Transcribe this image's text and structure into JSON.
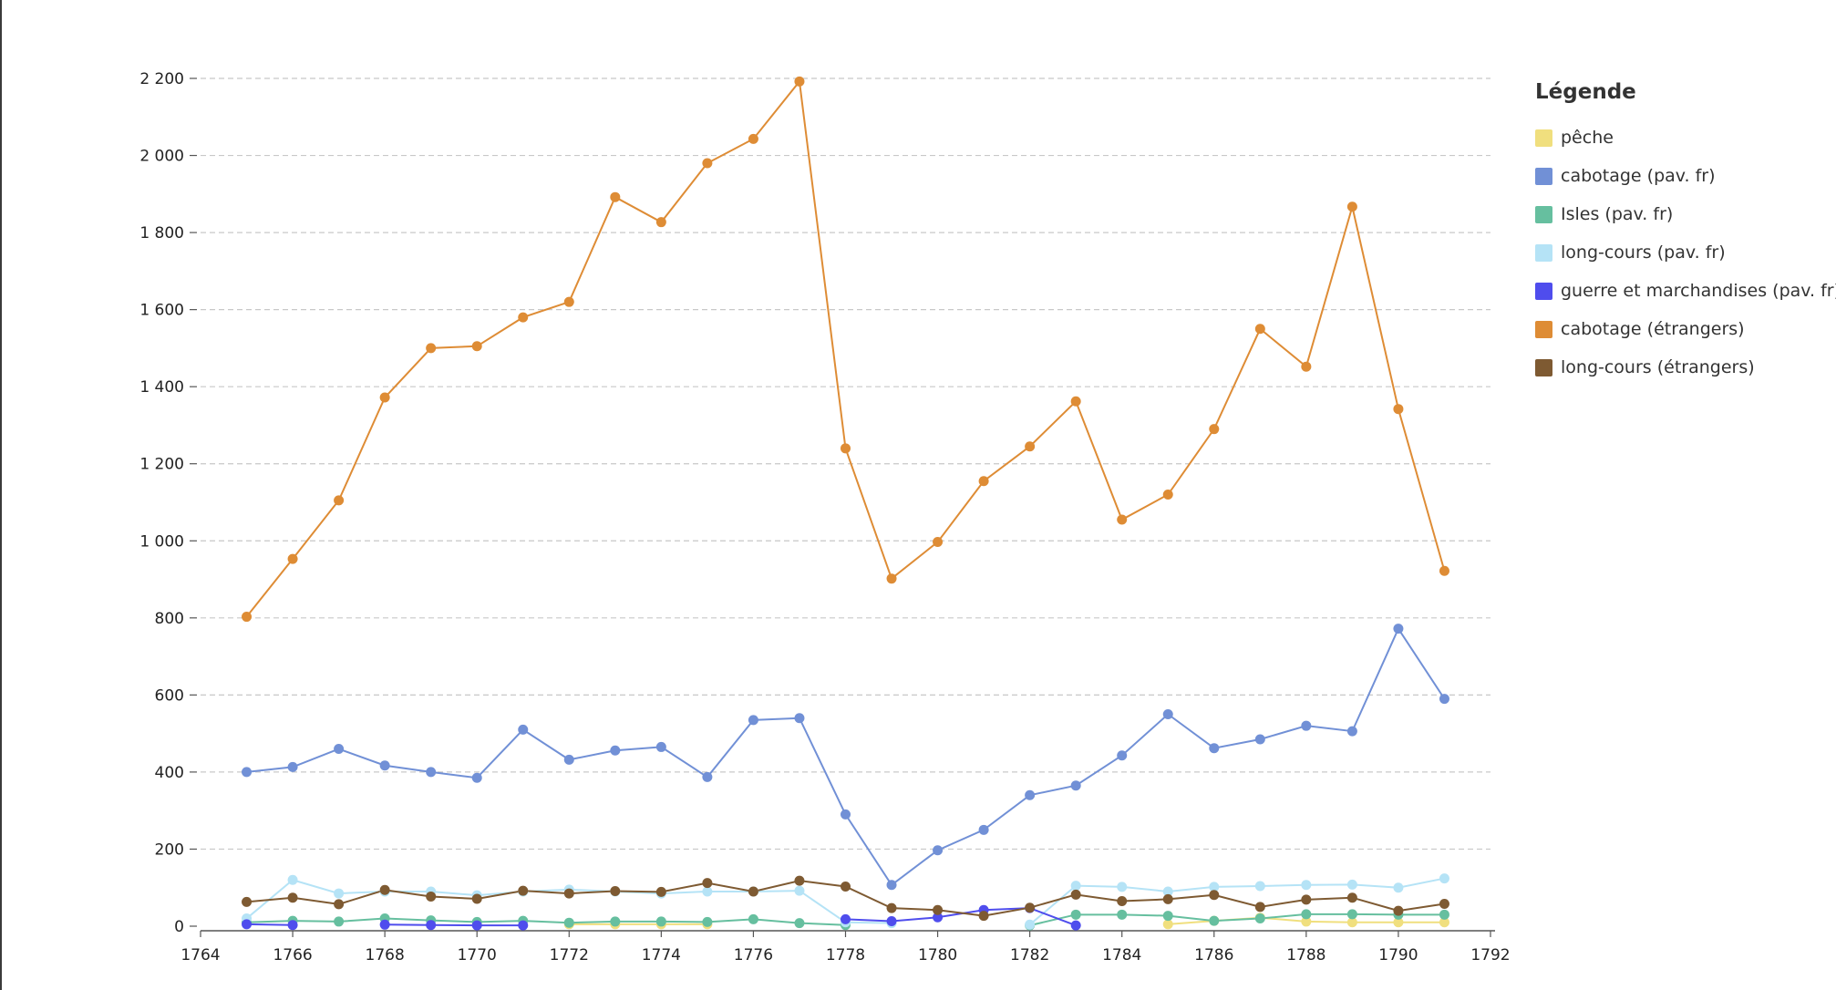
{
  "chart_data": {
    "type": "line",
    "title": "",
    "xlabel": "",
    "ylabel": "",
    "xlim": [
      1764,
      1792
    ],
    "ylim": [
      0,
      2200
    ],
    "x_ticks": [
      "1764",
      "1766",
      "1768",
      "1770",
      "1772",
      "1774",
      "1776",
      "1778",
      "1780",
      "1782",
      "1784",
      "1786",
      "1788",
      "1790",
      "1792"
    ],
    "y_ticks": [
      "0",
      "200",
      "400",
      "600",
      "800",
      "1 000",
      "1 200",
      "1 400",
      "1 600",
      "1 800",
      "2 000",
      "2 200"
    ],
    "grid": "horizontal dashed",
    "legend": {
      "title": "Légende",
      "placement": "right",
      "items": [
        {
          "label": "pêche",
          "color": "#f0df7e"
        },
        {
          "label": "cabotage (pav. fr)",
          "color": "#7190d6"
        },
        {
          "label": "Isles (pav. fr)",
          "color": "#66bf9f"
        },
        {
          "label": "long-cours (pav. fr)",
          "color": "#b5e3f6"
        },
        {
          "label": "guerre et marchandises (pav. fr)",
          "color": "#4f4ded"
        },
        {
          "label": "cabotage (étrangers)",
          "color": "#de8c35"
        },
        {
          "label": "long-cours (étrangers)",
          "color": "#7e5a32"
        }
      ]
    },
    "series": [
      {
        "name": "pêche",
        "color": "#f0df7e",
        "points": [
          [
            1772,
            5
          ],
          [
            1773,
            5
          ],
          [
            1774,
            5
          ],
          [
            1775,
            5
          ],
          [
            1785,
            5
          ],
          [
            1786,
            14
          ],
          [
            1787,
            22
          ],
          [
            1788,
            12
          ],
          [
            1789,
            10
          ],
          [
            1790,
            10
          ],
          [
            1791,
            10
          ]
        ]
      },
      {
        "name": "cabotage (pav. fr)",
        "color": "#7190d6",
        "points": [
          [
            1765,
            400
          ],
          [
            1766,
            413
          ],
          [
            1767,
            460
          ],
          [
            1768,
            417
          ],
          [
            1769,
            400
          ],
          [
            1770,
            385
          ],
          [
            1771,
            510
          ],
          [
            1772,
            432
          ],
          [
            1773,
            456
          ],
          [
            1774,
            465
          ],
          [
            1775,
            387
          ],
          [
            1776,
            535
          ],
          [
            1777,
            540
          ],
          [
            1778,
            290
          ],
          [
            1779,
            107
          ],
          [
            1780,
            197
          ],
          [
            1781,
            250
          ],
          [
            1782,
            340
          ],
          [
            1783,
            365
          ],
          [
            1784,
            443
          ],
          [
            1785,
            550
          ],
          [
            1786,
            462
          ],
          [
            1787,
            485
          ],
          [
            1788,
            520
          ],
          [
            1789,
            506
          ],
          [
            1790,
            772
          ],
          [
            1791,
            590
          ]
        ]
      },
      {
        "name": "Isles (pav. fr)",
        "color": "#66bf9f",
        "points": [
          [
            1765,
            10
          ],
          [
            1766,
            14
          ],
          [
            1767,
            12
          ],
          [
            1768,
            20
          ],
          [
            1769,
            15
          ],
          [
            1770,
            11
          ],
          [
            1771,
            14
          ],
          [
            1772,
            9
          ],
          [
            1773,
            12
          ],
          [
            1774,
            12
          ],
          [
            1775,
            11
          ],
          [
            1776,
            18
          ],
          [
            1777,
            8
          ],
          [
            1778,
            3
          ],
          [
            1782,
            2
          ],
          [
            1783,
            30
          ],
          [
            1784,
            30
          ],
          [
            1785,
            27
          ],
          [
            1786,
            14
          ],
          [
            1787,
            20
          ],
          [
            1788,
            31
          ],
          [
            1789,
            31
          ],
          [
            1790,
            30
          ],
          [
            1791,
            30
          ]
        ]
      },
      {
        "name": "long-cours (pav. fr)",
        "color": "#b5e3f6",
        "points": [
          [
            1765,
            20
          ],
          [
            1766,
            120
          ],
          [
            1767,
            85
          ],
          [
            1768,
            90
          ],
          [
            1769,
            90
          ],
          [
            1770,
            80
          ],
          [
            1771,
            90
          ],
          [
            1772,
            95
          ],
          [
            1773,
            90
          ],
          [
            1774,
            85
          ],
          [
            1775,
            90
          ],
          [
            1776,
            90
          ],
          [
            1777,
            92
          ],
          [
            1778,
            10
          ],
          [
            1779,
            8
          ],
          [
            1782,
            4
          ],
          [
            1783,
            105
          ],
          [
            1784,
            102
          ],
          [
            1785,
            90
          ],
          [
            1786,
            102
          ],
          [
            1787,
            104
          ],
          [
            1788,
            107
          ],
          [
            1789,
            108
          ],
          [
            1790,
            100
          ],
          [
            1791,
            124
          ]
        ]
      },
      {
        "name": "guerre et marchandises (pav. fr)",
        "color": "#4f4ded",
        "points": [
          [
            1765,
            5
          ],
          [
            1766,
            3
          ],
          [
            1768,
            4
          ],
          [
            1769,
            3
          ],
          [
            1770,
            2
          ],
          [
            1771,
            2
          ],
          [
            1778,
            18
          ],
          [
            1779,
            13
          ],
          [
            1780,
            23
          ],
          [
            1781,
            42
          ],
          [
            1782,
            47
          ],
          [
            1783,
            2
          ]
        ]
      },
      {
        "name": "cabotage (étrangers)",
        "color": "#de8c35",
        "points": [
          [
            1765,
            803
          ],
          [
            1766,
            953
          ],
          [
            1767,
            1105
          ],
          [
            1768,
            1372
          ],
          [
            1769,
            1500
          ],
          [
            1770,
            1505
          ],
          [
            1771,
            1580
          ],
          [
            1772,
            1620
          ],
          [
            1773,
            1892
          ],
          [
            1774,
            1827
          ],
          [
            1775,
            1980
          ],
          [
            1776,
            2043
          ],
          [
            1777,
            2192
          ],
          [
            1778,
            1240
          ],
          [
            1779,
            902
          ],
          [
            1780,
            997
          ],
          [
            1781,
            1155
          ],
          [
            1782,
            1245
          ],
          [
            1783,
            1362
          ],
          [
            1784,
            1055
          ],
          [
            1785,
            1120
          ],
          [
            1786,
            1290
          ],
          [
            1787,
            1550
          ],
          [
            1788,
            1452
          ],
          [
            1789,
            1867
          ],
          [
            1790,
            1342
          ],
          [
            1791,
            922
          ]
        ]
      },
      {
        "name": "long-cours (étrangers)",
        "color": "#7e5a32",
        "points": [
          [
            1765,
            63
          ],
          [
            1766,
            74
          ],
          [
            1767,
            57
          ],
          [
            1768,
            94
          ],
          [
            1769,
            77
          ],
          [
            1770,
            71
          ],
          [
            1771,
            92
          ],
          [
            1772,
            85
          ],
          [
            1773,
            91
          ],
          [
            1774,
            89
          ],
          [
            1775,
            112
          ],
          [
            1776,
            90
          ],
          [
            1777,
            118
          ],
          [
            1778,
            103
          ],
          [
            1779,
            47
          ],
          [
            1780,
            42
          ],
          [
            1781,
            27
          ],
          [
            1782,
            48
          ],
          [
            1783,
            82
          ],
          [
            1784,
            65
          ],
          [
            1785,
            70
          ],
          [
            1786,
            81
          ],
          [
            1787,
            50
          ],
          [
            1788,
            69
          ],
          [
            1789,
            74
          ],
          [
            1790,
            40
          ],
          [
            1791,
            58
          ]
        ]
      }
    ]
  }
}
